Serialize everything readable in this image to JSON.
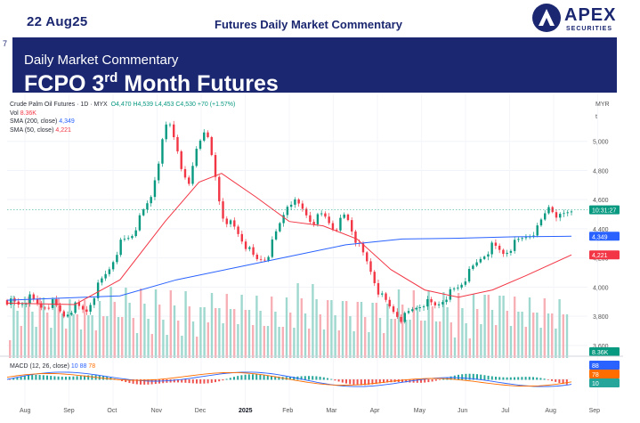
{
  "header": {
    "date": "22 Aug25",
    "title": "Futures Daily Market Commentary",
    "logo_name": "APEX",
    "logo_sub": "SECURITIES"
  },
  "banner": {
    "mark": "7",
    "subtitle": "Daily Market Commentary",
    "title_a": "FCPO 3",
    "title_sup": "rd",
    "title_b": " Month Futures"
  },
  "chart_info": {
    "symbol": "Crude Palm Oil Futures · 1D · MYX",
    "ohlc": "O4,470  H4,539  L4,453  C4,530  +70 (+1.57%)",
    "vol_label": "Vol",
    "vol_value": "8.36K",
    "sma200_label": "SMA (200, close)",
    "sma200_value": "4,349",
    "sma50_label": "SMA (50, close)",
    "sma50_value": "4,221",
    "macd_label": "MACD (12, 26, close)",
    "macd_v1": "10",
    "macd_v2": "88",
    "macd_v3": "78",
    "currency": "MYR",
    "axis_t": "t"
  },
  "price_tags": {
    "last": "10:31:27",
    "sma200": "4,349",
    "sma50": "4,221",
    "vol": "8.36K",
    "macd1": "88",
    "macd2": "78",
    "macd3": "10"
  },
  "colors": {
    "navy": "#1b2770",
    "up": "#089981",
    "down": "#f23645",
    "sma200": "#2962ff",
    "sma50": "#f23645",
    "macd_signal": "#ff6d00"
  },
  "chart_data": {
    "type": "line",
    "title": "Crude Palm Oil Futures · 1D · MYX",
    "y_ticks": [
      5000,
      4800,
      4600,
      4400,
      4200,
      4000,
      3800,
      3600
    ],
    "ylim": [
      3550,
      5200
    ],
    "x_labels": [
      "Aug",
      "Sep",
      "Oct",
      "Nov",
      "Dec",
      "2025",
      "Feb",
      "Mar",
      "Apr",
      "May",
      "Jun",
      "Jul",
      "Aug",
      "Sep"
    ],
    "price_series": [
      {
        "t": 0.0,
        "v": 3910
      },
      {
        "t": 0.02,
        "v": 3880
      },
      {
        "t": 0.04,
        "v": 3920
      },
      {
        "t": 0.06,
        "v": 3860
      },
      {
        "t": 0.08,
        "v": 3890
      },
      {
        "t": 0.1,
        "v": 3800
      },
      {
        "t": 0.12,
        "v": 3870
      },
      {
        "t": 0.14,
        "v": 3830
      },
      {
        "t": 0.16,
        "v": 4000
      },
      {
        "t": 0.18,
        "v": 4120
      },
      {
        "t": 0.2,
        "v": 4300
      },
      {
        "t": 0.22,
        "v": 4350
      },
      {
        "t": 0.24,
        "v": 4500
      },
      {
        "t": 0.255,
        "v": 4620
      },
      {
        "t": 0.27,
        "v": 4900
      },
      {
        "t": 0.285,
        "v": 5150
      },
      {
        "t": 0.3,
        "v": 4980
      },
      {
        "t": 0.32,
        "v": 4650
      },
      {
        "t": 0.335,
        "v": 4950
      },
      {
        "t": 0.35,
        "v": 5100
      },
      {
        "t": 0.365,
        "v": 4850
      },
      {
        "t": 0.38,
        "v": 4500
      },
      {
        "t": 0.4,
        "v": 4420
      },
      {
        "t": 0.42,
        "v": 4300
      },
      {
        "t": 0.44,
        "v": 4180
      },
      {
        "t": 0.46,
        "v": 4200
      },
      {
        "t": 0.48,
        "v": 4400
      },
      {
        "t": 0.5,
        "v": 4600
      },
      {
        "t": 0.52,
        "v": 4550
      },
      {
        "t": 0.54,
        "v": 4450
      },
      {
        "t": 0.56,
        "v": 4500
      },
      {
        "t": 0.58,
        "v": 4400
      },
      {
        "t": 0.6,
        "v": 4500
      },
      {
        "t": 0.62,
        "v": 4300
      },
      {
        "t": 0.64,
        "v": 4150
      },
      {
        "t": 0.66,
        "v": 3950
      },
      {
        "t": 0.68,
        "v": 3850
      },
      {
        "t": 0.7,
        "v": 3780
      },
      {
        "t": 0.72,
        "v": 3850
      },
      {
        "t": 0.74,
        "v": 3900
      },
      {
        "t": 0.76,
        "v": 3870
      },
      {
        "t": 0.78,
        "v": 3950
      },
      {
        "t": 0.8,
        "v": 4000
      },
      {
        "t": 0.82,
        "v": 4100
      },
      {
        "t": 0.84,
        "v": 4200
      },
      {
        "t": 0.86,
        "v": 4280
      },
      {
        "t": 0.88,
        "v": 4230
      },
      {
        "t": 0.9,
        "v": 4300
      },
      {
        "t": 0.92,
        "v": 4350
      },
      {
        "t": 0.94,
        "v": 4400
      },
      {
        "t": 0.96,
        "v": 4560
      },
      {
        "t": 0.98,
        "v": 4480
      },
      {
        "t": 1.0,
        "v": 4530
      }
    ],
    "sma200_series": [
      {
        "t": 0.0,
        "v": 3910
      },
      {
        "t": 0.2,
        "v": 3940
      },
      {
        "t": 0.3,
        "v": 4050
      },
      {
        "t": 0.4,
        "v": 4130
      },
      {
        "t": 0.5,
        "v": 4210
      },
      {
        "t": 0.6,
        "v": 4290
      },
      {
        "t": 0.7,
        "v": 4330
      },
      {
        "t": 0.8,
        "v": 4335
      },
      {
        "t": 0.9,
        "v": 4345
      },
      {
        "t": 1.0,
        "v": 4349
      }
    ],
    "sma50_series": [
      {
        "t": 0.0,
        "v": 3890
      },
      {
        "t": 0.12,
        "v": 3880
      },
      {
        "t": 0.2,
        "v": 4050
      },
      {
        "t": 0.28,
        "v": 4450
      },
      {
        "t": 0.34,
        "v": 4720
      },
      {
        "t": 0.38,
        "v": 4780
      },
      {
        "t": 0.44,
        "v": 4620
      },
      {
        "t": 0.5,
        "v": 4450
      },
      {
        "t": 0.56,
        "v": 4420
      },
      {
        "t": 0.62,
        "v": 4330
      },
      {
        "t": 0.68,
        "v": 4120
      },
      {
        "t": 0.74,
        "v": 3980
      },
      {
        "t": 0.8,
        "v": 3930
      },
      {
        "t": 0.86,
        "v": 3980
      },
      {
        "t": 0.92,
        "v": 4080
      },
      {
        "t": 1.0,
        "v": 4221
      }
    ]
  }
}
